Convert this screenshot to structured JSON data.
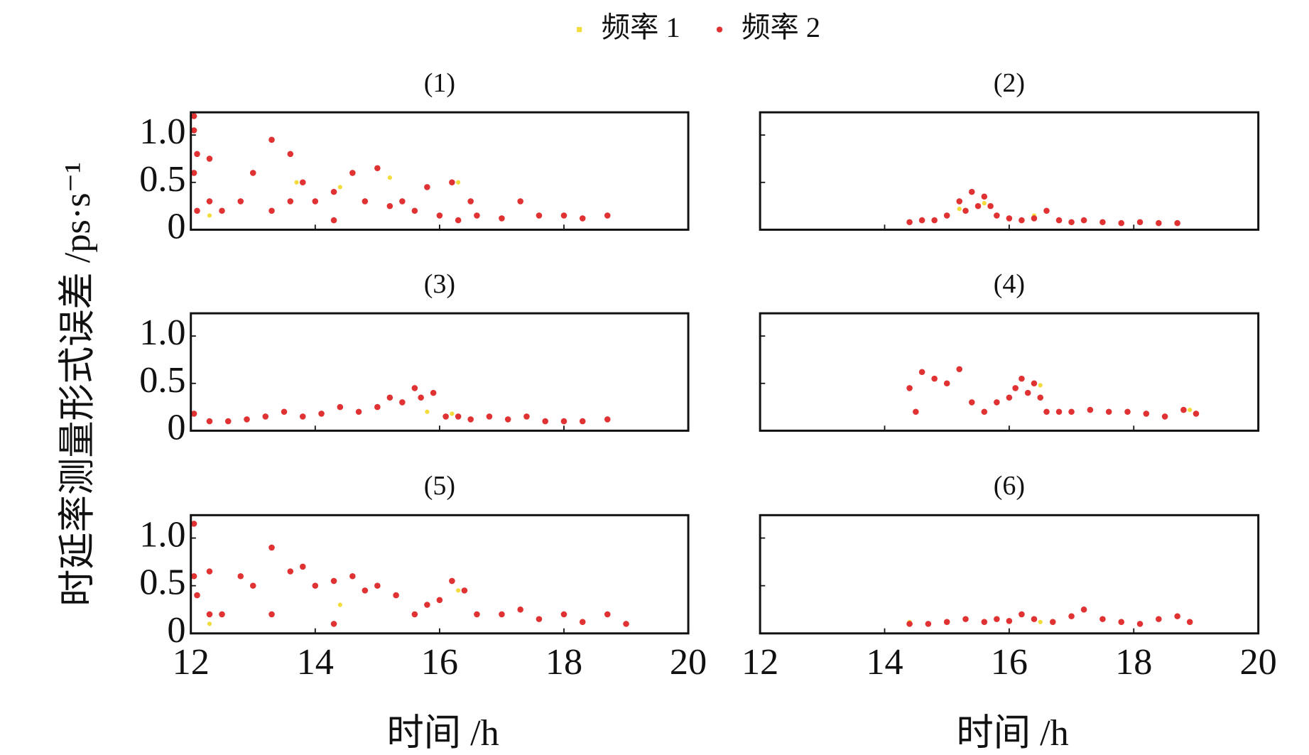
{
  "chart_data": [
    {
      "type": "scatter",
      "title": "(1)",
      "ylabel": "时延率测量形式误差 /ps·s⁻¹",
      "xlim": [
        12,
        20
      ],
      "ylim": [
        0,
        1.24
      ],
      "xticks": [
        12,
        14,
        16,
        18,
        20
      ],
      "yticks": [
        0,
        0.5,
        {
          "value": 1,
          "label": "1.0"
        }
      ],
      "series": [
        {
          "name": "频率 1",
          "color": "#f2dc3c",
          "x": [
            12.3,
            13.7,
            14.4,
            15.2,
            16.3,
            17.3
          ],
          "values": [
            0.15,
            0.5,
            0.45,
            0.55,
            0.5,
            0.3
          ]
        },
        {
          "name": "频率 2",
          "color": "#e03232",
          "x": [
            12.05,
            12.05,
            12.05,
            12.1,
            12.1,
            12.3,
            12.3,
            12.5,
            12.8,
            13.0,
            13.3,
            13.3,
            13.6,
            13.6,
            13.8,
            14.0,
            14.3,
            14.3,
            14.6,
            14.8,
            15.0,
            15.2,
            15.4,
            15.6,
            15.8,
            16.0,
            16.2,
            16.3,
            16.5,
            16.6,
            17.0,
            17.3,
            17.6,
            18.0,
            18.3,
            18.7
          ],
          "values": [
            1.2,
            1.05,
            0.6,
            0.8,
            0.2,
            0.75,
            0.3,
            0.2,
            0.3,
            0.6,
            0.95,
            0.2,
            0.8,
            0.3,
            0.5,
            0.3,
            0.4,
            0.1,
            0.6,
            0.3,
            0.65,
            0.25,
            0.3,
            0.2,
            0.45,
            0.15,
            0.5,
            0.1,
            0.3,
            0.15,
            0.12,
            0.3,
            0.15,
            0.15,
            0.12,
            0.15
          ]
        }
      ]
    },
    {
      "type": "scatter",
      "title": "(2)",
      "xlim": [
        12,
        20
      ],
      "ylim": [
        0,
        1.24
      ],
      "xticks": [
        12,
        14,
        16,
        18,
        20
      ],
      "yticks": [
        0,
        0.5,
        1
      ],
      "series": [
        {
          "name": "频率 1",
          "color": "#f2dc3c",
          "x": [
            15.2,
            15.6,
            16.4
          ],
          "values": [
            0.22,
            0.28,
            0.15
          ]
        },
        {
          "name": "频率 2",
          "color": "#e03232",
          "x": [
            14.4,
            14.6,
            14.8,
            15.0,
            15.2,
            15.3,
            15.4,
            15.5,
            15.6,
            15.7,
            15.8,
            16.0,
            16.2,
            16.4,
            16.6,
            16.8,
            17.0,
            17.2,
            17.5,
            17.8,
            18.1,
            18.4,
            18.7
          ],
          "values": [
            0.08,
            0.1,
            0.1,
            0.15,
            0.3,
            0.2,
            0.4,
            0.25,
            0.35,
            0.25,
            0.15,
            0.12,
            0.1,
            0.12,
            0.2,
            0.1,
            0.08,
            0.1,
            0.08,
            0.07,
            0.08,
            0.07,
            0.07
          ]
        }
      ]
    },
    {
      "type": "scatter",
      "title": "(3)",
      "xlim": [
        12,
        20
      ],
      "ylim": [
        0,
        1.24
      ],
      "xticks": [
        12,
        14,
        16,
        18,
        20
      ],
      "yticks": [
        0,
        0.5,
        {
          "value": 1,
          "label": "1.0"
        }
      ],
      "series": [
        {
          "name": "频率 1",
          "color": "#f2dc3c",
          "x": [
            15.8,
            16.2
          ],
          "values": [
            0.2,
            0.18
          ]
        },
        {
          "name": "频率 2",
          "color": "#e03232",
          "x": [
            12.05,
            12.3,
            12.6,
            12.9,
            13.2,
            13.5,
            13.8,
            14.1,
            14.4,
            14.7,
            15.0,
            15.2,
            15.4,
            15.6,
            15.7,
            15.9,
            16.1,
            16.3,
            16.5,
            16.8,
            17.1,
            17.4,
            17.7,
            18.0,
            18.3,
            18.7
          ],
          "values": [
            0.18,
            0.1,
            0.1,
            0.12,
            0.15,
            0.2,
            0.15,
            0.18,
            0.25,
            0.2,
            0.25,
            0.35,
            0.3,
            0.45,
            0.35,
            0.4,
            0.15,
            0.15,
            0.12,
            0.15,
            0.12,
            0.15,
            0.1,
            0.1,
            0.1,
            0.12
          ]
        }
      ]
    },
    {
      "type": "scatter",
      "title": "(4)",
      "xlim": [
        12,
        20
      ],
      "ylim": [
        0,
        1.24
      ],
      "xticks": [
        12,
        14,
        16,
        18,
        20
      ],
      "yticks": [
        0,
        0.5,
        1
      ],
      "series": [
        {
          "name": "频率 1",
          "color": "#f2dc3c",
          "x": [
            16.2,
            16.5,
            18.9
          ],
          "values": [
            0.55,
            0.48,
            0.22
          ]
        },
        {
          "name": "频率 2",
          "color": "#e03232",
          "x": [
            14.4,
            14.5,
            14.6,
            14.8,
            15.0,
            15.2,
            15.4,
            15.6,
            15.8,
            16.0,
            16.1,
            16.2,
            16.3,
            16.4,
            16.5,
            16.6,
            16.8,
            17.0,
            17.3,
            17.6,
            17.9,
            18.2,
            18.5,
            18.8,
            19.0
          ],
          "values": [
            0.45,
            0.2,
            0.62,
            0.55,
            0.5,
            0.65,
            0.3,
            0.2,
            0.3,
            0.35,
            0.45,
            0.55,
            0.4,
            0.5,
            0.35,
            0.2,
            0.2,
            0.2,
            0.22,
            0.2,
            0.2,
            0.18,
            0.15,
            0.22,
            0.18
          ]
        }
      ]
    },
    {
      "type": "scatter",
      "title": "(5)",
      "xlabel": "时间 /h",
      "xlim": [
        12,
        20
      ],
      "ylim": [
        0,
        1.24
      ],
      "xticks": [
        12,
        14,
        16,
        18,
        20
      ],
      "yticks": [
        0,
        0.5,
        {
          "value": 1,
          "label": "1.0"
        }
      ],
      "series": [
        {
          "name": "频率 1",
          "color": "#f2dc3c",
          "x": [
            12.3,
            14.4,
            15.8,
            16.3,
            18.7
          ],
          "values": [
            0.1,
            0.3,
            0.3,
            0.45,
            0.2
          ]
        },
        {
          "name": "频率 2",
          "color": "#e03232",
          "x": [
            12.05,
            12.05,
            12.1,
            12.3,
            12.3,
            12.5,
            12.8,
            13.0,
            13.3,
            13.3,
            13.6,
            13.8,
            14.0,
            14.3,
            14.3,
            14.6,
            14.8,
            15.0,
            15.3,
            15.6,
            15.8,
            16.0,
            16.2,
            16.4,
            16.6,
            17.0,
            17.3,
            17.6,
            18.0,
            18.3,
            18.7,
            19.0
          ],
          "values": [
            1.15,
            0.6,
            0.4,
            0.65,
            0.2,
            0.2,
            0.6,
            0.5,
            0.9,
            0.2,
            0.65,
            0.7,
            0.5,
            0.55,
            0.1,
            0.6,
            0.45,
            0.5,
            0.4,
            0.2,
            0.3,
            0.35,
            0.55,
            0.45,
            0.2,
            0.2,
            0.25,
            0.15,
            0.2,
            0.12,
            0.2,
            0.1
          ]
        }
      ]
    },
    {
      "type": "scatter",
      "title": "(6)",
      "xlabel": "时间 /h",
      "xlim": [
        12,
        20
      ],
      "ylim": [
        0,
        1.24
      ],
      "xticks": [
        12,
        14,
        16,
        18,
        20
      ],
      "yticks": [
        0,
        0.5,
        1
      ],
      "series": [
        {
          "name": "频率 1",
          "color": "#f2dc3c",
          "x": [
            14.4,
            16.5
          ],
          "values": [
            0.12,
            0.12
          ]
        },
        {
          "name": "频率 2",
          "color": "#e03232",
          "x": [
            14.4,
            14.7,
            15.0,
            15.3,
            15.6,
            15.8,
            16.0,
            16.2,
            16.4,
            16.7,
            17.0,
            17.2,
            17.5,
            17.8,
            18.1,
            18.4,
            18.7,
            18.9
          ],
          "values": [
            0.1,
            0.1,
            0.12,
            0.15,
            0.12,
            0.15,
            0.13,
            0.2,
            0.15,
            0.12,
            0.18,
            0.25,
            0.15,
            0.12,
            0.1,
            0.15,
            0.18,
            0.12
          ]
        }
      ]
    }
  ]
}
